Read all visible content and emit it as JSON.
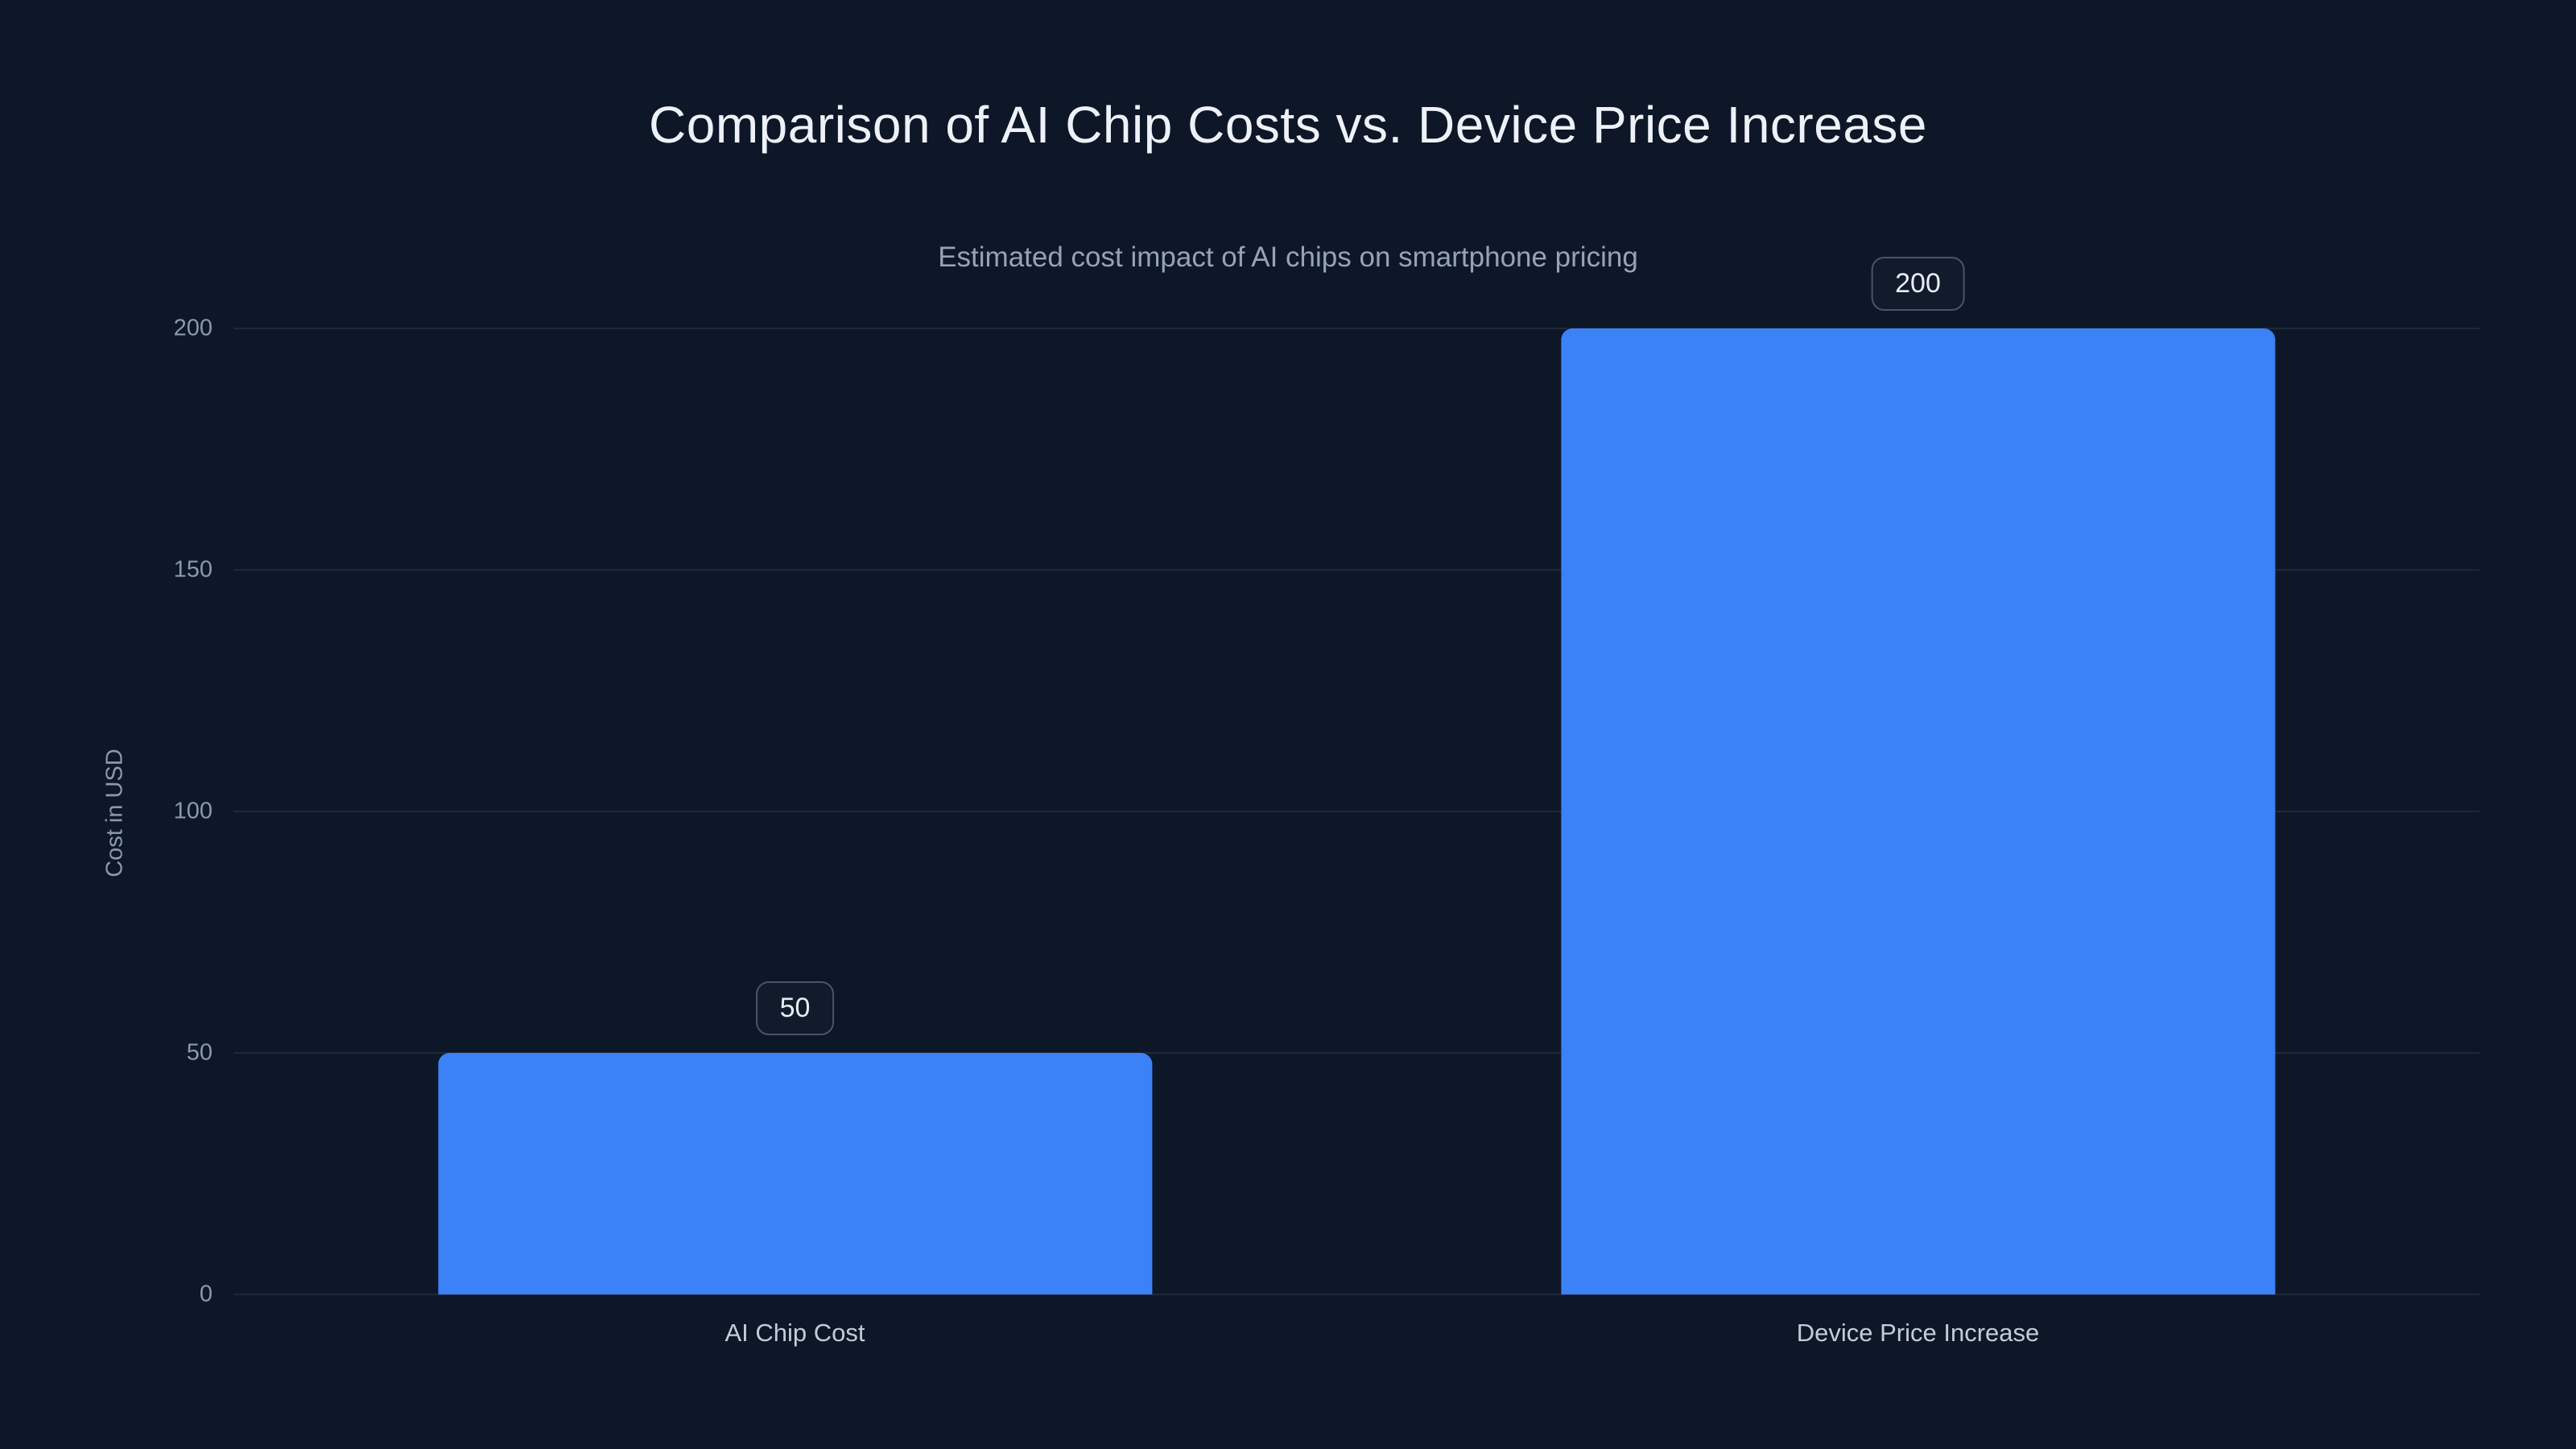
{
  "chart_data": {
    "type": "bar",
    "title": "Comparison of AI Chip Costs vs. Device Price Increase",
    "subtitle": "Estimated cost impact of AI chips on smartphone pricing",
    "ylabel": "Cost in USD",
    "xlabel": "",
    "categories": [
      "AI Chip Cost",
      "Device Price Increase"
    ],
    "values": [
      50,
      200
    ],
    "value_labels": [
      "50",
      "200"
    ],
    "ylim": [
      0,
      200
    ],
    "yticks": [
      0,
      50,
      100,
      150,
      200
    ],
    "grid": true,
    "legend_position": "none",
    "bar_color": "#3b82f6",
    "background_color": "#0d1728",
    "gridline_color": "rgba(148,163,184,0.13)",
    "tick_color": "#8b99ad",
    "title_color": "#eef2f8",
    "subtitle_color": "#96a3b6"
  }
}
